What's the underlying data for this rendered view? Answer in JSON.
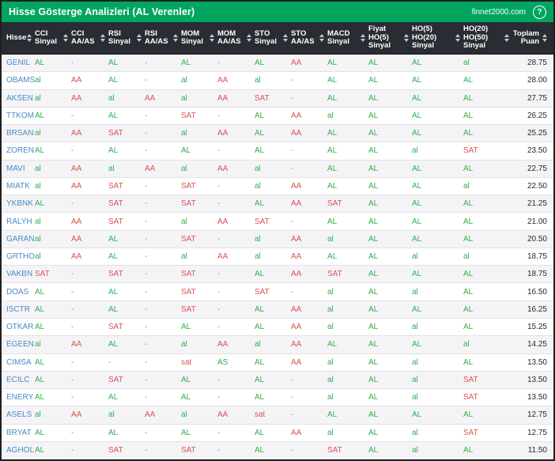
{
  "title_bar": {
    "title": "Hisse Gösterge Analizleri (AL Verenler)",
    "site": "finnet2000.com",
    "help_icon": "?"
  },
  "colors": {
    "title_bar_green": "#00a65f",
    "table_header_bg": "#2a2c33",
    "buy_signal": "#2fb04a",
    "sell_signal": "#d9534f",
    "ticker_blue": "#4a8bc4",
    "neutral_dash": "#8e9299"
  },
  "table": {
    "columns": [
      {
        "id": "hisse",
        "lines": [
          "Hisse"
        ]
      },
      {
        "id": "cci-sinyal",
        "lines": [
          "CCI",
          "Sinyal"
        ]
      },
      {
        "id": "cci-aaas",
        "lines": [
          "CCI",
          "AA/AS"
        ]
      },
      {
        "id": "rsi-sinyal",
        "lines": [
          "RSI",
          "Sinyal"
        ]
      },
      {
        "id": "rsi-aaas",
        "lines": [
          "RSI",
          "AA/AS"
        ]
      },
      {
        "id": "mom-sinyal",
        "lines": [
          "MOM",
          "Sinyal"
        ]
      },
      {
        "id": "mom-aaas",
        "lines": [
          "MOM",
          "AA/AS"
        ]
      },
      {
        "id": "sto-sinyal",
        "lines": [
          "STO",
          "Sinyal"
        ]
      },
      {
        "id": "sto-aaas",
        "lines": [
          "STO",
          "AA/AS"
        ]
      },
      {
        "id": "macd-sinyal",
        "lines": [
          "MACD",
          "Sinyal"
        ]
      },
      {
        "id": "fiyat-ho5",
        "lines": [
          "Fiyat",
          "HO(5)",
          "Sinyal"
        ]
      },
      {
        "id": "ho5-ho20",
        "lines": [
          "HO(5)",
          "HO(20)",
          "Sinyal"
        ]
      },
      {
        "id": "ho20-ho50",
        "lines": [
          "HO(20)",
          "HO(50)",
          "Sinyal"
        ]
      },
      {
        "id": "toplam-puan",
        "lines": [
          "Toplam",
          "Puan"
        ],
        "align": "right"
      }
    ],
    "rows": [
      {
        "ticker": "GENIL",
        "values": [
          "AL",
          "-",
          "AL",
          "-",
          "AL",
          "-",
          "AL",
          "AA",
          "AL",
          "AL",
          "AL",
          "al"
        ],
        "score": "28.75"
      },
      {
        "ticker": "OBAMS",
        "values": [
          "al",
          "AA",
          "AL",
          "-",
          "al",
          "AA",
          "al",
          "-",
          "AL",
          "AL",
          "AL",
          "AL"
        ],
        "score": "28.00"
      },
      {
        "ticker": "AKSEN",
        "values": [
          "al",
          "AA",
          "al",
          "AA",
          "al",
          "AA",
          "SAT",
          "-",
          "AL",
          "AL",
          "AL",
          "AL"
        ],
        "score": "27.75"
      },
      {
        "ticker": "TTKOM",
        "values": [
          "AL",
          "-",
          "AL",
          "-",
          "SAT",
          "-",
          "AL",
          "AA",
          "al",
          "AL",
          "AL",
          "AL"
        ],
        "score": "26.25"
      },
      {
        "ticker": "BRSAN",
        "values": [
          "al",
          "AA",
          "SAT",
          "-",
          "al",
          "AA",
          "AL",
          "AA",
          "AL",
          "AL",
          "AL",
          "AL"
        ],
        "score": "25.25"
      },
      {
        "ticker": "ZOREN",
        "values": [
          "AL",
          "-",
          "AL",
          "-",
          "AL",
          "-",
          "AL",
          "-",
          "AL",
          "AL",
          "al",
          "SAT"
        ],
        "score": "23.50"
      },
      {
        "ticker": "MAVI",
        "values": [
          "al",
          "AA",
          "al",
          "AA",
          "al",
          "AA",
          "al",
          "-",
          "AL",
          "AL",
          "AL",
          "AL"
        ],
        "score": "22.75"
      },
      {
        "ticker": "MIATK",
        "values": [
          "al",
          "AA",
          "SAT",
          "-",
          "SAT",
          "-",
          "al",
          "AA",
          "AL",
          "AL",
          "AL",
          "al"
        ],
        "score": "22.50"
      },
      {
        "ticker": "YKBNK",
        "values": [
          "AL",
          "-",
          "SAT",
          "-",
          "SAT",
          "-",
          "AL",
          "AA",
          "SAT",
          "AL",
          "AL",
          "AL"
        ],
        "score": "21.25"
      },
      {
        "ticker": "RALYH",
        "values": [
          "al",
          "AA",
          "SAT",
          "-",
          "al",
          "AA",
          "SAT",
          "-",
          "AL",
          "AL",
          "AL",
          "AL"
        ],
        "score": "21.00"
      },
      {
        "ticker": "GARAN",
        "values": [
          "al",
          "AA",
          "AL",
          "-",
          "SAT",
          "-",
          "al",
          "AA",
          "al",
          "AL",
          "AL",
          "AL"
        ],
        "score": "20.50"
      },
      {
        "ticker": "GRTHO",
        "values": [
          "al",
          "AA",
          "AL",
          "-",
          "al",
          "AA",
          "al",
          "AA",
          "AL",
          "AL",
          "al",
          "al"
        ],
        "score": "18.75"
      },
      {
        "ticker": "VAKBN",
        "values": [
          "SAT",
          "-",
          "SAT",
          "-",
          "SAT",
          "-",
          "AL",
          "AA",
          "SAT",
          "AL",
          "AL",
          "AL"
        ],
        "score": "18.75"
      },
      {
        "ticker": "DOAS",
        "values": [
          "AL",
          "-",
          "AL",
          "-",
          "SAT",
          "-",
          "SAT",
          "-",
          "al",
          "AL",
          "al",
          "AL"
        ],
        "score": "16.50"
      },
      {
        "ticker": "ISCTR",
        "values": [
          "AL",
          "-",
          "AL",
          "-",
          "SAT",
          "-",
          "AL",
          "AA",
          "al",
          "AL",
          "AL",
          "AL"
        ],
        "score": "16.25"
      },
      {
        "ticker": "OTKAR",
        "values": [
          "AL",
          "-",
          "SAT",
          "-",
          "AL",
          "-",
          "AL",
          "AA",
          "al",
          "AL",
          "al",
          "AL"
        ],
        "score": "15.25"
      },
      {
        "ticker": "EGEEN",
        "values": [
          "al",
          "AA",
          "AL",
          "-",
          "al",
          "AA",
          "al",
          "AA",
          "AL",
          "AL",
          "AL",
          "al"
        ],
        "score": "14.25"
      },
      {
        "ticker": "CIMSA",
        "values": [
          "AL",
          "-",
          "-",
          "-",
          "sat",
          "AS",
          "AL",
          "AA",
          "al",
          "AL",
          "al",
          "AL"
        ],
        "score": "13.50"
      },
      {
        "ticker": "ECILC",
        "values": [
          "AL",
          "-",
          "SAT",
          "-",
          "AL",
          "-",
          "AL",
          "-",
          "al",
          "AL",
          "al",
          "SAT"
        ],
        "score": "13.50"
      },
      {
        "ticker": "ENERY",
        "values": [
          "AL",
          "-",
          "AL",
          "-",
          "AL",
          "-",
          "AL",
          "-",
          "al",
          "AL",
          "al",
          "SAT"
        ],
        "score": "13.50"
      },
      {
        "ticker": "ASELS",
        "values": [
          "al",
          "AA",
          "al",
          "AA",
          "al",
          "AA",
          "sat",
          "-",
          "AL",
          "AL",
          "AL",
          "AL"
        ],
        "score": "12.75"
      },
      {
        "ticker": "BRYAT",
        "values": [
          "AL",
          "-",
          "AL",
          "-",
          "AL",
          "-",
          "AL",
          "AA",
          "al",
          "AL",
          "al",
          "SAT"
        ],
        "score": "12.75"
      },
      {
        "ticker": "AGHOL",
        "values": [
          "AL",
          "-",
          "SAT",
          "-",
          "SAT",
          "-",
          "AL",
          "-",
          "SAT",
          "AL",
          "al",
          "AL"
        ],
        "score": "11.50"
      }
    ]
  }
}
